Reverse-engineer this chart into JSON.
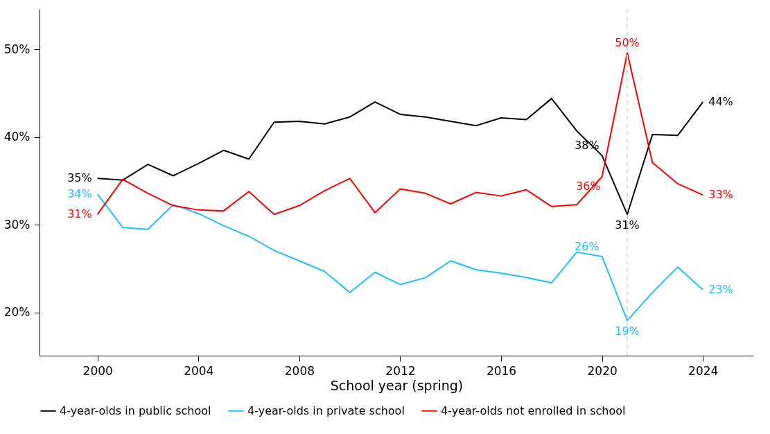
{
  "chart_data": {
    "type": "line",
    "xlabel": "School year (spring)",
    "x": [
      2000,
      2001,
      2002,
      2003,
      2004,
      2005,
      2006,
      2007,
      2008,
      2009,
      2010,
      2011,
      2012,
      2013,
      2014,
      2015,
      2016,
      2017,
      2018,
      2019,
      2020,
      2021,
      2022,
      2023,
      2024
    ],
    "series": [
      {
        "name": "4-year-olds in public school",
        "color": "#000000",
        "values": [
          35.3,
          35.1,
          36.9,
          35.6,
          37.0,
          38.5,
          37.5,
          41.7,
          41.8,
          41.5,
          42.3,
          44.0,
          42.6,
          42.3,
          41.8,
          41.3,
          42.2,
          42.0,
          44.4,
          40.7,
          37.9,
          31.2,
          40.3,
          40.2,
          44.0
        ],
        "value_labels": [
          "35%",
          null,
          null,
          null,
          null,
          null,
          null,
          null,
          null,
          null,
          null,
          null,
          null,
          null,
          null,
          null,
          null,
          null,
          null,
          null,
          "38%",
          "31%",
          null,
          null,
          "44%"
        ]
      },
      {
        "name": "4-year-olds in private school",
        "color": "#1ec0ff",
        "values": [
          33.5,
          29.7,
          29.5,
          32.3,
          31.3,
          29.9,
          28.7,
          27.1,
          25.9,
          24.7,
          22.3,
          24.6,
          23.2,
          24.0,
          25.9,
          24.9,
          24.5,
          24.0,
          23.4,
          26.9,
          26.4,
          19.1,
          22.3,
          25.2,
          22.6
        ],
        "value_labels": [
          "34%",
          null,
          null,
          null,
          null,
          null,
          null,
          null,
          null,
          null,
          null,
          null,
          null,
          null,
          null,
          null,
          null,
          null,
          null,
          null,
          "26%",
          "19%",
          null,
          null,
          "23%"
        ]
      },
      {
        "name": "4-year-olds not enrolled in school",
        "color": "#ff0000",
        "values": [
          31.2,
          35.2,
          33.6,
          32.2,
          31.7,
          31.6,
          33.8,
          31.2,
          32.2,
          33.9,
          35.3,
          31.4,
          34.1,
          33.6,
          32.4,
          33.7,
          33.3,
          34.0,
          32.1,
          32.3,
          35.5,
          49.6,
          37.1,
          34.7,
          33.4
        ],
        "value_labels": [
          "31%",
          null,
          null,
          null,
          null,
          null,
          null,
          null,
          null,
          null,
          null,
          null,
          null,
          null,
          null,
          null,
          null,
          null,
          null,
          null,
          "36%",
          "50%",
          null,
          null,
          "33%"
        ]
      }
    ],
    "xlim": [
      1997.7,
      2026.0
    ],
    "xticks": [
      2000,
      2004,
      2008,
      2012,
      2016,
      2020,
      2024
    ],
    "ylim": [
      15.1,
      54.6
    ],
    "yticks": [
      {
        "value": 20,
        "label": "20%"
      },
      {
        "value": 30,
        "label": "30%"
      },
      {
        "value": 40,
        "label": "40%"
      },
      {
        "value": 50,
        "label": "50%"
      }
    ],
    "ref_lines": [
      {
        "axis": "x",
        "value": 2021,
        "color": "#d9d9d9",
        "line_style": "dashed"
      }
    ],
    "legend": "bottom",
    "grid": false,
    "line_style": "solid"
  }
}
